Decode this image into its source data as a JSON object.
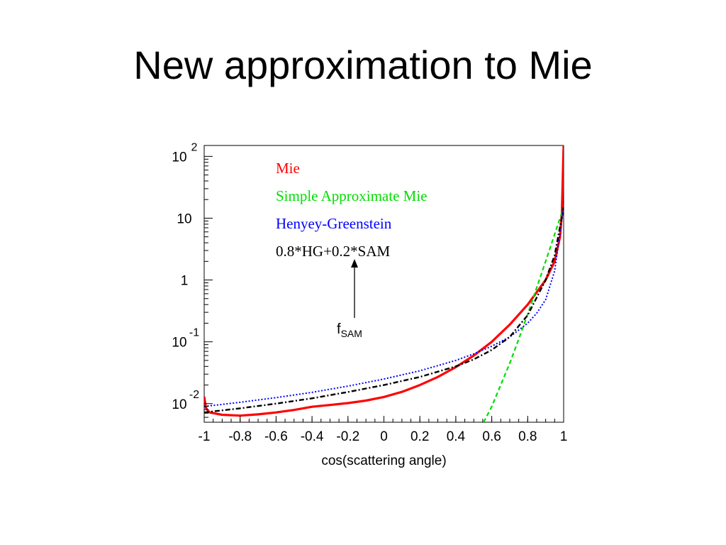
{
  "slide": {
    "title": "New approximation to Mie"
  },
  "chart_data": {
    "type": "line",
    "xlabel": "cos(scattering angle)",
    "ylabel": "",
    "xlim": [
      -1,
      1
    ],
    "ylim": [
      0.005,
      150
    ],
    "yscale": "log",
    "grid": false,
    "legend_position": "top-left-inside",
    "x_ticks": [
      {
        "value": -1,
        "label": "-1"
      },
      {
        "value": -0.8,
        "label": "-0.8"
      },
      {
        "value": -0.6,
        "label": "-0.6"
      },
      {
        "value": -0.4,
        "label": "-0.4"
      },
      {
        "value": -0.2,
        "label": "-0.2"
      },
      {
        "value": 0,
        "label": "0"
      },
      {
        "value": 0.2,
        "label": "0.2"
      },
      {
        "value": 0.4,
        "label": "0.4"
      },
      {
        "value": 0.6,
        "label": "0.6"
      },
      {
        "value": 0.8,
        "label": "0.8"
      },
      {
        "value": 1,
        "label": "1"
      }
    ],
    "y_ticks": [
      {
        "value": 100,
        "base": "10",
        "exp": "2"
      },
      {
        "value": 10,
        "base": "10",
        "exp": ""
      },
      {
        "value": 1,
        "base": "1",
        "exp": ""
      },
      {
        "value": 0.1,
        "base": "10",
        "exp": "-1"
      },
      {
        "value": 0.01,
        "base": "10",
        "exp": "-2"
      }
    ],
    "series": [
      {
        "name": "Mie",
        "color": "#ff0000",
        "style": "solid",
        "x": [
          -1.0,
          -0.99,
          -0.97,
          -0.9,
          -0.8,
          -0.7,
          -0.6,
          -0.5,
          -0.4,
          -0.3,
          -0.2,
          -0.1,
          0.0,
          0.1,
          0.2,
          0.3,
          0.4,
          0.5,
          0.6,
          0.7,
          0.8,
          0.9,
          0.95,
          0.98,
          0.99,
          1.0
        ],
        "y": [
          0.013,
          0.0085,
          0.0072,
          0.0066,
          0.0064,
          0.0067,
          0.0072,
          0.0079,
          0.0089,
          0.0095,
          0.0102,
          0.0112,
          0.0128,
          0.0155,
          0.02,
          0.027,
          0.039,
          0.06,
          0.1,
          0.19,
          0.4,
          1.0,
          2.0,
          5.0,
          12.0,
          150.0
        ]
      },
      {
        "name": "Simple Approximate Mie",
        "color": "#00dd00",
        "style": "dashed",
        "x": [
          0.555,
          0.6,
          0.7,
          0.75,
          0.8,
          0.9,
          1.0
        ],
        "y": [
          0.005,
          0.009,
          0.045,
          0.11,
          0.28,
          2.0,
          15.0
        ]
      },
      {
        "name": "Henyey-Greenstein",
        "color": "#0000ff",
        "style": "dotted",
        "x": [
          -1.0,
          -0.8,
          -0.6,
          -0.4,
          -0.2,
          0.0,
          0.2,
          0.4,
          0.5,
          0.6,
          0.7,
          0.8,
          0.85,
          0.9,
          0.95,
          1.0
        ],
        "y": [
          0.009,
          0.0105,
          0.0125,
          0.0152,
          0.0192,
          0.025,
          0.034,
          0.05,
          0.064,
          0.085,
          0.12,
          0.2,
          0.29,
          0.48,
          1.4,
          15.0
        ]
      },
      {
        "name": "0.8*HG+0.2*SAM",
        "color": "#000000",
        "style": "dashdot",
        "x": [
          -1.0,
          -0.8,
          -0.6,
          -0.4,
          -0.2,
          0.0,
          0.2,
          0.4,
          0.5,
          0.6,
          0.7,
          0.8,
          0.9,
          0.95,
          1.0
        ],
        "y": [
          0.0072,
          0.0084,
          0.01,
          0.0122,
          0.0154,
          0.02,
          0.027,
          0.04,
          0.052,
          0.074,
          0.12,
          0.27,
          1.0,
          2.5,
          15.0
        ]
      }
    ],
    "annotation": {
      "label_main": "f",
      "label_sub": "SAM",
      "points_to": "0.8*HG+0.2*SAM"
    }
  }
}
